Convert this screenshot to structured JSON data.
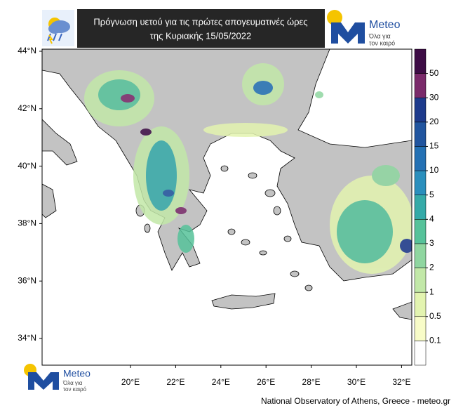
{
  "header": {
    "title_line1": "Πρόγνωση υετού για τις πρώτες απογευματινές ώρες",
    "title_line2": "της Κυριακής 15/05/2022"
  },
  "logo": {
    "name": "Meteo",
    "tagline_line1": "Όλα για",
    "tagline_line2": "τον καιρό"
  },
  "map": {
    "lat_ticks": [
      {
        "value": 44,
        "label": "44°N"
      },
      {
        "value": 42,
        "label": "42°N"
      },
      {
        "value": 40,
        "label": "40°N"
      },
      {
        "value": 38,
        "label": "38°N"
      },
      {
        "value": 36,
        "label": "36°N"
      },
      {
        "value": 34,
        "label": "34°N"
      }
    ],
    "lon_ticks": [
      {
        "value": 20,
        "label": "20°E"
      },
      {
        "value": 22,
        "label": "22°E"
      },
      {
        "value": 24,
        "label": "24°E"
      },
      {
        "value": 26,
        "label": "26°E"
      },
      {
        "value": 28,
        "label": "28°E"
      },
      {
        "value": 30,
        "label": "30°E"
      },
      {
        "value": 32,
        "label": "32°E"
      }
    ]
  },
  "colorbar": {
    "levels": [
      0.1,
      0.5,
      1,
      2,
      3,
      4,
      5,
      10,
      15,
      20,
      30,
      50
    ],
    "colors": [
      "#ffffff",
      "#f8fcc8",
      "#e3f4b0",
      "#c2e8a8",
      "#8fd6a0",
      "#56c29a",
      "#35aaa8",
      "#2a8fbd",
      "#2471b4",
      "#21559f",
      "#1d3a8c",
      "#7a2a6a",
      "#3d0c45"
    ]
  },
  "footer": "National Observatory of Athens, Greece - meteo.gr"
}
